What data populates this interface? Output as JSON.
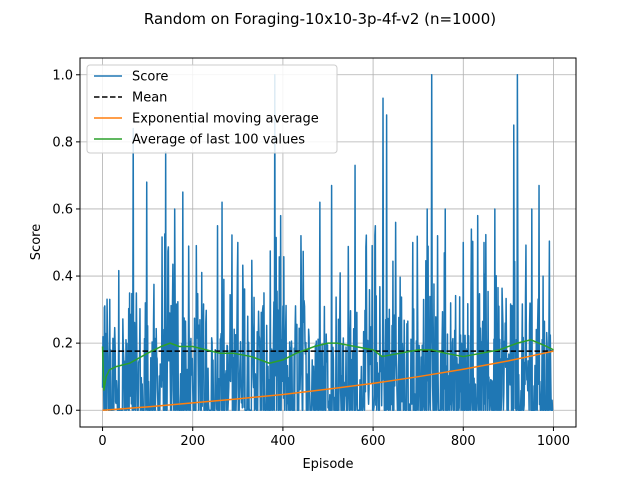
{
  "chart_data": {
    "type": "line",
    "title": "Random on Foraging-10x10-3p-4f-v2 (n=1000)",
    "xlabel": "Episode",
    "ylabel": "Score",
    "xlim": [
      -50,
      1050
    ],
    "ylim": [
      -0.05,
      1.05
    ],
    "xticks": [
      0,
      200,
      400,
      600,
      800,
      1000
    ],
    "yticks": [
      "0.0",
      "0.2",
      "0.4",
      "0.6",
      "0.8",
      "1.0"
    ],
    "grid": true,
    "legend_position": "top-left",
    "n": 1000,
    "score_range": [
      0,
      1
    ],
    "score_spikes": [
      [
        68,
        0.84
      ],
      [
        98,
        0.68
      ],
      [
        140,
        0.77
      ],
      [
        160,
        0.6
      ],
      [
        178,
        0.65
      ],
      [
        255,
        0.55
      ],
      [
        265,
        0.62
      ],
      [
        300,
        0.5
      ],
      [
        382,
        1.0
      ],
      [
        395,
        0.58
      ],
      [
        440,
        0.52
      ],
      [
        482,
        0.62
      ],
      [
        508,
        0.67
      ],
      [
        560,
        0.73
      ],
      [
        605,
        0.55
      ],
      [
        622,
        0.93
      ],
      [
        630,
        0.88
      ],
      [
        650,
        0.56
      ],
      [
        688,
        0.5
      ],
      [
        720,
        0.6
      ],
      [
        730,
        1.0
      ],
      [
        760,
        0.6
      ],
      [
        800,
        0.5
      ],
      [
        818,
        0.54
      ],
      [
        832,
        0.58
      ],
      [
        870,
        0.6
      ],
      [
        912,
        0.85
      ],
      [
        920,
        1.0
      ],
      [
        952,
        0.6
      ],
      [
        968,
        0.67
      ]
    ],
    "series": [
      {
        "name": "Score",
        "color": "#1f77b4",
        "style": "solid"
      },
      {
        "name": "Mean",
        "color": "#000000",
        "style": "dashed",
        "value": 0.176
      },
      {
        "name": "Exponential moving average",
        "color": "#ff7f0e",
        "style": "solid",
        "x": [
          0,
          100,
          200,
          300,
          400,
          500,
          600,
          700,
          800,
          900,
          1000
        ],
        "values": [
          0.0,
          0.01,
          0.022,
          0.034,
          0.047,
          0.063,
          0.08,
          0.1,
          0.122,
          0.147,
          0.176
        ]
      },
      {
        "name": "Average of last 100 values",
        "color": "#2ca02c",
        "style": "solid",
        "x": [
          0,
          3,
          8,
          15,
          30,
          60,
          100,
          130,
          150,
          170,
          200,
          230,
          260,
          290,
          330,
          370,
          400,
          430,
          470,
          500,
          520,
          560,
          600,
          620,
          660,
          700,
          730,
          760,
          800,
          840,
          880,
          920,
          950,
          985,
          1000
        ],
        "values": [
          0.19,
          0.06,
          0.1,
          0.12,
          0.13,
          0.14,
          0.17,
          0.19,
          0.2,
          0.19,
          0.19,
          0.18,
          0.17,
          0.17,
          0.16,
          0.14,
          0.15,
          0.17,
          0.19,
          0.2,
          0.2,
          0.19,
          0.18,
          0.16,
          0.17,
          0.18,
          0.18,
          0.17,
          0.16,
          0.17,
          0.18,
          0.2,
          0.21,
          0.19,
          0.18
        ]
      }
    ]
  }
}
